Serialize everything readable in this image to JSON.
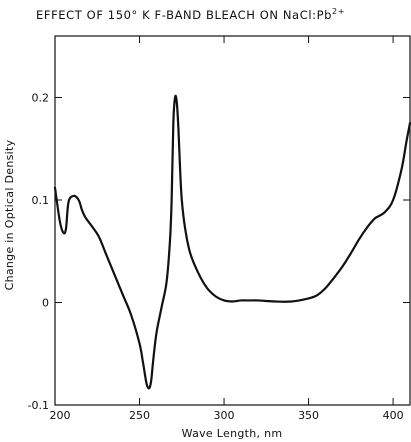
{
  "chart_data": {
    "type": "line",
    "title": "EFFECT OF 150° K F-BAND BLEACH ON NaCl:Pb",
    "title_superscript": "2+",
    "xlabel": "Wave Length, nm",
    "ylabel": "Change in Optical Density",
    "xlim": [
      200,
      410
    ],
    "ylim": [
      -0.1,
      0.26
    ],
    "x_ticks": [
      200,
      250,
      300,
      350,
      400
    ],
    "x_tick_labels": [
      "200",
      "250",
      "300",
      "350",
      "400"
    ],
    "y_ticks": [
      -0.1,
      0,
      0.1,
      0.2
    ],
    "y_tick_labels": [
      "-0.1",
      "0",
      "0.1",
      "0.2"
    ],
    "grid": false,
    "legend": "none",
    "line_color": "#111111",
    "series": [
      {
        "x": [
          200,
          201,
          203,
          205,
          206.5,
          208,
          211,
          214,
          216,
          218,
          222,
          226,
          230,
          235,
          240,
          245,
          250,
          252,
          254,
          255,
          256,
          257,
          258,
          260,
          263,
          266,
          268,
          269,
          270,
          271,
          272,
          273,
          274,
          275,
          277,
          280,
          285,
          290,
          295,
          300,
          305,
          310,
          315,
          320,
          330,
          340,
          350,
          355,
          360,
          365,
          370,
          375,
          380,
          385,
          388,
          390,
          395,
          400,
          405,
          408,
          410
        ],
        "y": [
          0.112,
          0.1,
          0.078,
          0.068,
          0.072,
          0.098,
          0.104,
          0.1,
          0.09,
          0.083,
          0.074,
          0.064,
          0.048,
          0.028,
          0.008,
          -0.012,
          -0.04,
          -0.058,
          -0.078,
          -0.083,
          -0.083,
          -0.075,
          -0.058,
          -0.03,
          -0.005,
          0.02,
          0.06,
          0.1,
          0.175,
          0.2,
          0.196,
          0.17,
          0.13,
          0.1,
          0.072,
          0.048,
          0.028,
          0.014,
          0.006,
          0.002,
          0.001,
          0.002,
          0.002,
          0.002,
          0.001,
          0.001,
          0.004,
          0.007,
          0.014,
          0.024,
          0.035,
          0.048,
          0.062,
          0.074,
          0.08,
          0.083,
          0.088,
          0.1,
          0.13,
          0.158,
          0.175
        ]
      }
    ]
  }
}
